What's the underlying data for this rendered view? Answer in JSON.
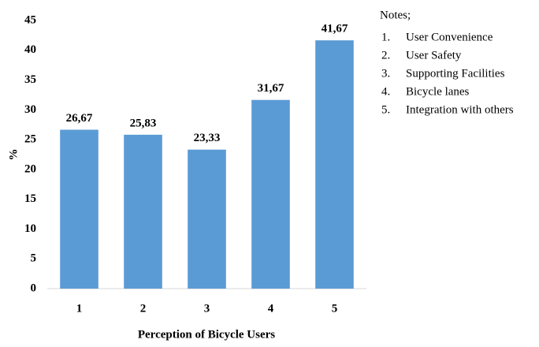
{
  "chart_data": {
    "type": "bar",
    "categories": [
      "1",
      "2",
      "3",
      "4",
      "5"
    ],
    "values": [
      26.67,
      25.83,
      23.33,
      31.67,
      41.67
    ],
    "value_labels": [
      "26,67",
      "25,83",
      "23,33",
      "31,67",
      "41,67"
    ],
    "color": "#5b9bd5",
    "ylim": [
      0,
      45
    ],
    "yticks": [
      0,
      5,
      10,
      15,
      20,
      25,
      30,
      35,
      40,
      45
    ],
    "grid": false,
    "xlabel": "Perception of Bicycle Users",
    "ylabel": "%",
    "notes": {
      "title": "Notes;",
      "items": [
        {
          "number": "1.",
          "text": "User Convenience"
        },
        {
          "number": "2.",
          "text": "User Safety"
        },
        {
          "number": "3.",
          "text": "Supporting Facilities"
        },
        {
          "number": "4.",
          "text": "Bicycle lanes"
        },
        {
          "number": "5.",
          "text": "Integration with others"
        }
      ]
    }
  }
}
